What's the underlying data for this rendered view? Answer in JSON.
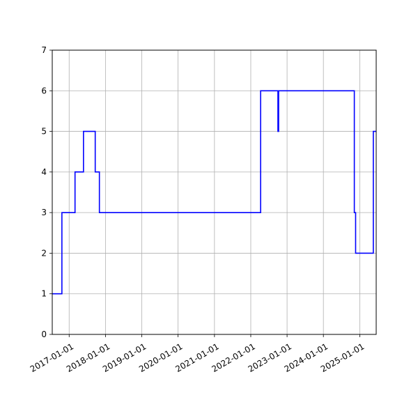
{
  "chart_data": {
    "type": "line",
    "title": "",
    "xlabel": "",
    "ylabel": "",
    "step": "post",
    "grid": true,
    "x_axis": {
      "type": "date",
      "range": [
        "2016-07-15",
        "2025-06-15"
      ],
      "ticks": [
        "2017-01-01",
        "2018-01-01",
        "2019-01-01",
        "2020-01-01",
        "2021-01-01",
        "2022-01-01",
        "2023-01-01",
        "2024-01-01",
        "2025-01-01"
      ],
      "tick_labels": [
        "2017-01-01",
        "2018-01-01",
        "2019-01-01",
        "2020-01-01",
        "2021-01-01",
        "2022-01-01",
        "2023-01-01",
        "2024-01-01",
        "2025-01-01"
      ]
    },
    "y_axis": {
      "range": [
        0,
        7
      ],
      "ticks": [
        0,
        1,
        2,
        3,
        4,
        5,
        6,
        7
      ],
      "tick_labels": [
        "0",
        "1",
        "2",
        "3",
        "4",
        "5",
        "6",
        "7"
      ]
    },
    "series": [
      {
        "color": "#0000ff",
        "points": [
          {
            "x": "2016-07-15",
            "y": 1
          },
          {
            "x": "2016-10-20",
            "y": 3
          },
          {
            "x": "2017-03-01",
            "y": 4
          },
          {
            "x": "2017-05-25",
            "y": 5
          },
          {
            "x": "2017-09-20",
            "y": 4
          },
          {
            "x": "2017-11-01",
            "y": 3
          },
          {
            "x": "2022-04-10",
            "y": 6
          },
          {
            "x": "2022-10-01",
            "y": 5
          },
          {
            "x": "2022-10-08",
            "y": 6
          },
          {
            "x": "2024-11-07",
            "y": 3
          },
          {
            "x": "2024-11-20",
            "y": 2
          },
          {
            "x": "2025-05-17",
            "y": 5
          },
          {
            "x": "2025-06-15",
            "y": 5
          }
        ]
      }
    ]
  }
}
